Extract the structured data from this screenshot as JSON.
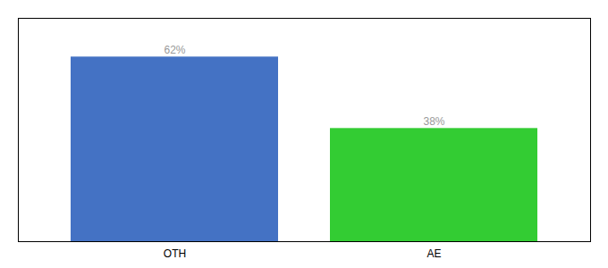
{
  "chart_data": {
    "type": "bar",
    "categories": [
      "OTH",
      "AE"
    ],
    "values": [
      62,
      38
    ],
    "value_labels": [
      "62%",
      "38%"
    ],
    "colors": [
      "#4472C4",
      "#33CC33"
    ],
    "ylim": [
      0,
      75
    ],
    "yticks": [],
    "data_labels": true,
    "tick_labels": "x"
  }
}
